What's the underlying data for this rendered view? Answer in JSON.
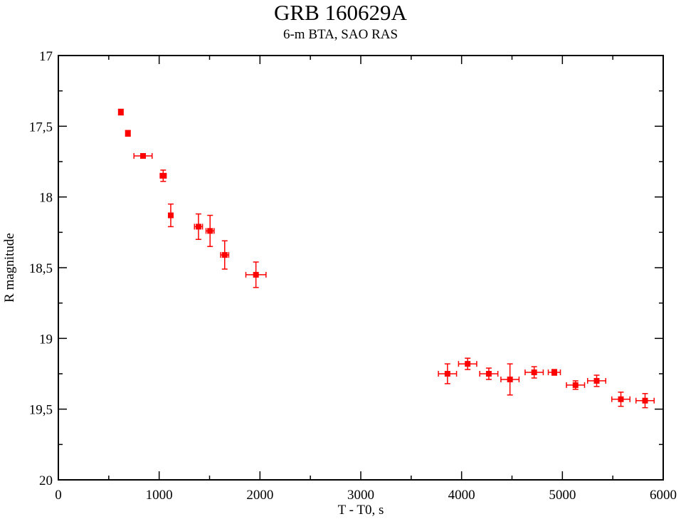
{
  "chart_data": {
    "type": "scatter",
    "title": "GRB 160629A",
    "subtitle": "6-m BTA, SAO RAS",
    "xlabel": "T - T0, s",
    "ylabel": "R magnitude",
    "xlim": [
      0,
      6000
    ],
    "ylim": [
      17,
      20
    ],
    "y_inverted": true,
    "grid": false,
    "x_ticks": [
      0,
      1000,
      2000,
      3000,
      4000,
      5000,
      6000
    ],
    "x_tick_labels": [
      "0",
      "1000",
      "2000",
      "3000",
      "4000",
      "5000",
      "6000"
    ],
    "y_ticks": [
      17,
      17.5,
      18,
      18.5,
      19,
      19.5,
      20
    ],
    "y_tick_labels": [
      "17",
      "17,5",
      "18",
      "18,5",
      "19",
      "19,5",
      "20"
    ],
    "marker_color": "#ff0000",
    "points": [
      {
        "x": 620,
        "y": 17.4,
        "xerr": 10,
        "yerr": 0.02
      },
      {
        "x": 690,
        "y": 17.55,
        "xerr": 20,
        "yerr": 0.02
      },
      {
        "x": 840,
        "y": 17.71,
        "xerr": 90,
        "yerr": 0.01
      },
      {
        "x": 1040,
        "y": 17.85,
        "xerr": 30,
        "yerr": 0.04
      },
      {
        "x": 1115,
        "y": 18.13,
        "xerr": 0,
        "yerr": 0.08
      },
      {
        "x": 1390,
        "y": 18.21,
        "xerr": 40,
        "yerr": 0.09
      },
      {
        "x": 1505,
        "y": 18.24,
        "xerr": 40,
        "yerr": 0.11
      },
      {
        "x": 1650,
        "y": 18.41,
        "xerr": 40,
        "yerr": 0.1
      },
      {
        "x": 1960,
        "y": 18.55,
        "xerr": 100,
        "yerr": 0.09
      },
      {
        "x": 3860,
        "y": 19.25,
        "xerr": 90,
        "yerr": 0.07
      },
      {
        "x": 4060,
        "y": 19.18,
        "xerr": 90,
        "yerr": 0.04
      },
      {
        "x": 4270,
        "y": 19.25,
        "xerr": 90,
        "yerr": 0.04
      },
      {
        "x": 4480,
        "y": 19.29,
        "xerr": 90,
        "yerr": 0.11
      },
      {
        "x": 4720,
        "y": 19.24,
        "xerr": 90,
        "yerr": 0.04
      },
      {
        "x": 4920,
        "y": 19.24,
        "xerr": 60,
        "yerr": 0.02
      },
      {
        "x": 5130,
        "y": 19.33,
        "xerr": 90,
        "yerr": 0.03
      },
      {
        "x": 5340,
        "y": 19.3,
        "xerr": 90,
        "yerr": 0.04
      },
      {
        "x": 5580,
        "y": 19.43,
        "xerr": 90,
        "yerr": 0.05
      },
      {
        "x": 5820,
        "y": 19.44,
        "xerr": 90,
        "yerr": 0.05
      }
    ]
  }
}
